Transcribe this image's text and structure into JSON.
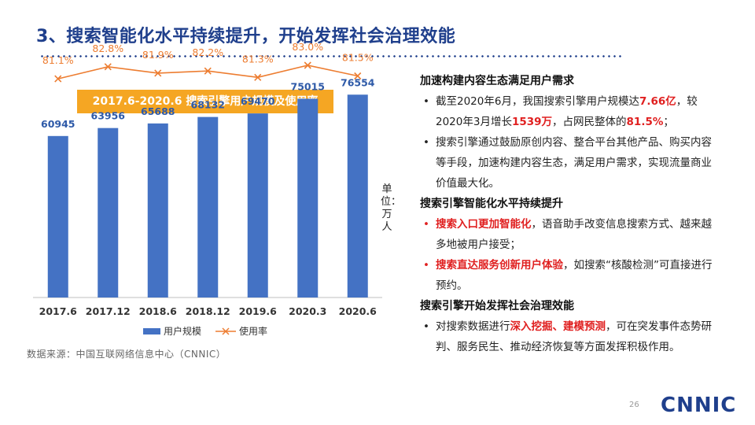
{
  "title": "3、搜索智能化水平持续提升，开始发挥社会治理效能",
  "chart_data": {
    "type": "bar",
    "title": "2017.6-2020.6 搜索引擎用户规模及使用率",
    "categories": [
      "2017.6",
      "2017.12",
      "2018.6",
      "2018.12",
      "2019.6",
      "2020.3",
      "2020.6"
    ],
    "series": [
      {
        "name": "用户规模",
        "type": "bar",
        "values": [
          60945,
          63956,
          65688,
          68132,
          69470,
          75015,
          76554
        ],
        "labels": [
          "60945",
          "63956",
          "65688",
          "68132",
          "69470",
          "75015",
          "76554"
        ]
      },
      {
        "name": "使用率",
        "type": "line",
        "values": [
          81.1,
          82.8,
          81.9,
          82.2,
          81.3,
          83.0,
          81.5
        ],
        "labels": [
          "81.1%",
          "82.8%",
          "81.9%",
          "82.2%",
          "81.3%",
          "83.0%",
          "81.5%"
        ]
      }
    ],
    "ylim": [
      0,
      90000
    ],
    "rate_ylim": [
      60,
      90
    ],
    "unit_label": "单位：万人",
    "colors": {
      "bar": "#4472c4",
      "line": "#ed7d31"
    }
  },
  "legend": {
    "bar": "用户规模",
    "line": "使用率"
  },
  "source": "数据来源：中国互联网络信息中心（CNNIC）",
  "sections": [
    {
      "heading": "加速构建内容生态满足用户需求"
    },
    {
      "heading": "搜索引擎智能化水平持续提升"
    },
    {
      "heading": "搜索引擎开始发挥社会治理效能"
    }
  ],
  "bullets": {
    "b1": {
      "t1": "截至2020年6月，我国搜索引擎用户规模达",
      "h1": "7.66亿",
      "t2": "，较2020年3月增长",
      "h2": "1539万",
      "t3": "，占网民整体的",
      "h3": "81.5%",
      "t4": "；"
    },
    "b2": {
      "t1": "搜索引擎通过鼓励原创内容、整合平台其他产品、购买内容等手段，加速构建内容生态，满足用户需求，实现流量商业价值最大化。"
    },
    "b3": {
      "h1": "搜索入口更加智能化",
      "t1": "，语音助手改变信息搜索方式、越来越多地被用户接受；"
    },
    "b4": {
      "h1": "搜索直达服务创新用户体验",
      "t1": "，如搜索“核酸检测”可直接进行预约。"
    },
    "b5": {
      "t1": "对搜索数据进行",
      "h1": "深入挖掘、建模预测",
      "t2": "，可在突发事件态势研判、服务民生、推动经济恢复等方面发挥积极作用。"
    }
  },
  "page_number": "26",
  "logo": "CNNIC"
}
